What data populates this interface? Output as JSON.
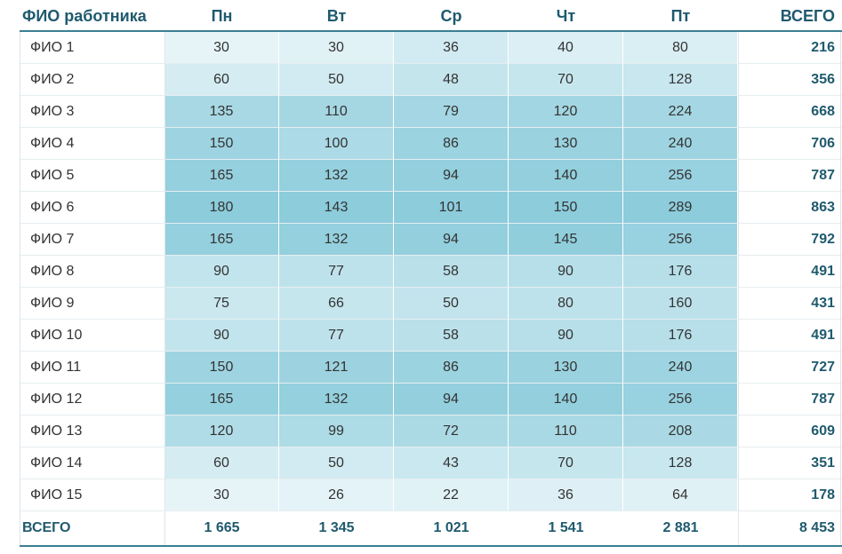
{
  "table": {
    "header": [
      "ФИО работника",
      "Пн",
      "Вт",
      "Ср",
      "Чт",
      "Пт",
      "ВСЕГО"
    ],
    "rows": [
      [
        "ФИО 1",
        30,
        30,
        36,
        40,
        80,
        216
      ],
      [
        "ФИО 2",
        60,
        50,
        48,
        70,
        128,
        356
      ],
      [
        "ФИО 3",
        135,
        110,
        79,
        120,
        224,
        668
      ],
      [
        "ФИО 4",
        150,
        100,
        86,
        130,
        240,
        706
      ],
      [
        "ФИО 5",
        165,
        132,
        94,
        140,
        256,
        787
      ],
      [
        "ФИО 6",
        180,
        143,
        101,
        150,
        289,
        863
      ],
      [
        "ФИО 7",
        165,
        132,
        94,
        145,
        256,
        792
      ],
      [
        "ФИО 8",
        90,
        77,
        58,
        90,
        176,
        491
      ],
      [
        "ФИО 9",
        75,
        66,
        50,
        80,
        160,
        431
      ],
      [
        "ФИО 10",
        90,
        77,
        58,
        90,
        176,
        491
      ],
      [
        "ФИО 11",
        150,
        121,
        86,
        130,
        240,
        727
      ],
      [
        "ФИО 12",
        165,
        132,
        94,
        140,
        256,
        787
      ],
      [
        "ФИО 13",
        120,
        99,
        72,
        110,
        208,
        609
      ],
      [
        "ФИО 14",
        60,
        50,
        43,
        70,
        128,
        351
      ],
      [
        "ФИО 15",
        30,
        26,
        22,
        36,
        64,
        178
      ]
    ],
    "footer": [
      "ВСЕГО",
      "1 665",
      "1 345",
      "1 021",
      "1 541",
      "2 881",
      "8 453"
    ]
  }
}
